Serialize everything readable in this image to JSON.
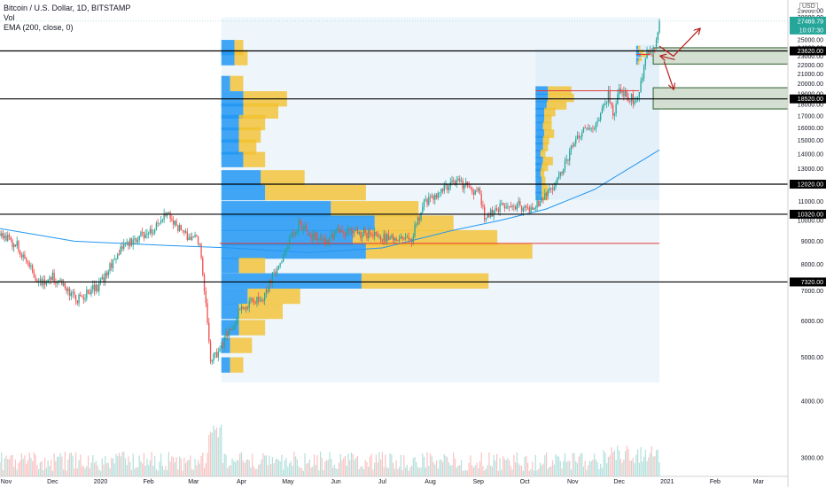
{
  "legend": {
    "symbol": "Bitcoin / U.S. Dollar, 1D, BITSTAMP",
    "volume": "Vol",
    "ema": "EMA (200, close, 0)"
  },
  "currency": "USD",
  "chart_data": {
    "type": "candlestick",
    "y_axis": {
      "scale": "log",
      "range": [
        2600,
        29500
      ],
      "tick_labels": [
        "29000.00",
        "28000.00",
        "27000.00",
        "26000.00",
        "25000.00",
        "24000.00",
        "23000.00",
        "22000.00",
        "21000.00",
        "20000.00",
        "19000.00",
        "18000.00",
        "17000.00",
        "16000.00",
        "15000.00",
        "14000.00",
        "13000.00",
        "12000.00",
        "11000.00",
        "10000.00",
        "9000.00",
        "8000.00",
        "7000.00",
        "6000.00",
        "5000.00",
        "4000.00",
        "3000.00"
      ]
    },
    "x_axis": {
      "range": [
        "2019-10-28",
        "2021-03-20"
      ],
      "tick_labels": [
        {
          "label": "Nov",
          "date": "2019-11-01"
        },
        {
          "label": "Dec",
          "date": "2019-12-01"
        },
        {
          "label": "2020",
          "date": "2020-01-01"
        },
        {
          "label": "Feb",
          "date": "2020-02-01"
        },
        {
          "label": "Mar",
          "date": "2020-03-01"
        },
        {
          "label": "Apr",
          "date": "2020-04-01"
        },
        {
          "label": "May",
          "date": "2020-05-01"
        },
        {
          "label": "Jun",
          "date": "2020-06-01"
        },
        {
          "label": "Jul",
          "date": "2020-07-01"
        },
        {
          "label": "Aug",
          "date": "2020-08-01"
        },
        {
          "label": "Sep",
          "date": "2020-09-01"
        },
        {
          "label": "Oct",
          "date": "2020-10-01"
        },
        {
          "label": "Nov",
          "date": "2020-11-01"
        },
        {
          "label": "Dec",
          "date": "2020-12-01"
        },
        {
          "label": "2021",
          "date": "2021-01-01"
        },
        {
          "label": "Feb",
          "date": "2021-02-01"
        },
        {
          "label": "Mar",
          "date": "2021-03-01"
        }
      ]
    },
    "price_path": [
      [
        "2019-10-28",
        9350
      ],
      [
        "2019-11-08",
        8800
      ],
      [
        "2019-11-22",
        7300
      ],
      [
        "2019-12-01",
        7500
      ],
      [
        "2019-12-17",
        6700
      ],
      [
        "2019-12-31",
        7200
      ],
      [
        "2020-01-15",
        8800
      ],
      [
        "2020-02-01",
        9400
      ],
      [
        "2020-02-13",
        10300
      ],
      [
        "2020-02-25",
        9300
      ],
      [
        "2020-03-05",
        9000
      ],
      [
        "2020-03-12",
        5000
      ],
      [
        "2020-03-16",
        5100
      ],
      [
        "2020-04-01",
        6400
      ],
      [
        "2020-04-15",
        6800
      ],
      [
        "2020-04-30",
        8700
      ],
      [
        "2020-05-08",
        9800
      ],
      [
        "2020-05-25",
        8900
      ],
      [
        "2020-06-01",
        9500
      ],
      [
        "2020-06-15",
        9400
      ],
      [
        "2020-07-01",
        9200
      ],
      [
        "2020-07-20",
        9150
      ],
      [
        "2020-07-28",
        11000
      ],
      [
        "2020-08-10",
        11700
      ],
      [
        "2020-08-17",
        12200
      ],
      [
        "2020-09-02",
        11500
      ],
      [
        "2020-09-05",
        10200
      ],
      [
        "2020-09-20",
        10900
      ],
      [
        "2020-10-07",
        10600
      ],
      [
        "2020-10-20",
        11900
      ],
      [
        "2020-10-27",
        13400
      ],
      [
        "2020-11-05",
        15500
      ],
      [
        "2020-11-15",
        16000
      ],
      [
        "2020-11-24",
        19000
      ],
      [
        "2020-11-27",
        17000
      ],
      [
        "2020-12-01",
        19300
      ],
      [
        "2020-12-12",
        18300
      ],
      [
        "2020-12-16",
        21000
      ],
      [
        "2020-12-19",
        23600
      ],
      [
        "2020-12-22",
        23000
      ],
      [
        "2020-12-26",
        25500
      ],
      [
        "2020-12-27",
        27469.79
      ]
    ],
    "ema_200": [
      [
        "2019-10-28",
        9600
      ],
      [
        "2019-12-15",
        9000
      ],
      [
        "2020-02-15",
        8800
      ],
      [
        "2020-03-25",
        8700
      ],
      [
        "2020-05-15",
        8500
      ],
      [
        "2020-07-01",
        8700
      ],
      [
        "2020-08-15",
        9500
      ],
      [
        "2020-09-15",
        10000
      ],
      [
        "2020-10-15",
        10600
      ],
      [
        "2020-11-15",
        11700
      ],
      [
        "2020-12-27",
        14300
      ]
    ],
    "horizontal_levels": [
      {
        "price": 23620,
        "label": "23620.00"
      },
      {
        "price": 18520,
        "label": "18520.00"
      },
      {
        "price": 12020,
        "label": "12020.00"
      },
      {
        "price": 10320,
        "label": "10320.00"
      },
      {
        "price": 7320,
        "label": "7320.00"
      }
    ],
    "point_of_control_lines": [
      {
        "from": "2020-03-18",
        "to": "2020-12-27",
        "price": 8900
      },
      {
        "from": "2020-10-08",
        "to": "2020-12-14",
        "price": 19300
      },
      {
        "from": "2020-12-12",
        "to": "2020-12-21",
        "price": 23200
      }
    ],
    "current_price": {
      "price": 27469.79,
      "label": "27469.79",
      "countdown": "10:07:30"
    },
    "zones": [
      {
        "from": "2020-12-23",
        "to": "2021-03-20",
        "low": 22100,
        "high": 24000
      },
      {
        "from": "2020-12-23",
        "to": "2021-03-20",
        "low": 17600,
        "high": 19600
      }
    ],
    "projection_arrows": [
      {
        "points": [
          [
            "2020-12-27",
            24200
          ],
          [
            "2021-01-05",
            23000
          ],
          [
            "2021-01-22",
            26400
          ]
        ]
      },
      {
        "points": [
          [
            "2020-12-30",
            22400
          ],
          [
            "2021-01-05",
            19500
          ]
        ]
      },
      {
        "points": [
          [
            "2021-01-06",
            22600
          ],
          [
            "2020-12-28",
            23000
          ]
        ]
      }
    ],
    "volume_profiles": [
      {
        "from": "2020-03-19",
        "to": "2020-12-27",
        "low": 4400,
        "high": 28000,
        "rows": [
          {
            "price": 24000,
            "up": 0.03,
            "down": 0.02
          },
          {
            "price": 22800,
            "up": 0.03,
            "down": 0.03
          },
          {
            "price": 20000,
            "up": 0.02,
            "down": 0.03
          },
          {
            "price": 18500,
            "up": 0.05,
            "down": 0.1
          },
          {
            "price": 17400,
            "up": 0.05,
            "down": 0.08
          },
          {
            "price": 16400,
            "up": 0.04,
            "down": 0.06
          },
          {
            "price": 15400,
            "up": 0.04,
            "down": 0.05
          },
          {
            "price": 14500,
            "up": 0.04,
            "down": 0.04
          },
          {
            "price": 13600,
            "up": 0.05,
            "down": 0.05
          },
          {
            "price": 12400,
            "up": 0.09,
            "down": 0.1
          },
          {
            "price": 11500,
            "up": 0.1,
            "down": 0.23
          },
          {
            "price": 10600,
            "up": 0.25,
            "down": 0.2
          },
          {
            "price": 9850,
            "up": 0.35,
            "down": 0.18
          },
          {
            "price": 9150,
            "up": 0.3,
            "down": 0.33
          },
          {
            "price": 8550,
            "up": 0.33,
            "down": 0.38
          },
          {
            "price": 7950,
            "up": 0.04,
            "down": 0.06
          },
          {
            "price": 7350,
            "up": 0.32,
            "down": 0.29
          },
          {
            "price": 6800,
            "up": 0.06,
            "down": 0.12
          },
          {
            "price": 6300,
            "up": 0.04,
            "down": 0.1
          },
          {
            "price": 5800,
            "up": 0.04,
            "down": 0.06
          },
          {
            "price": 5300,
            "up": 0.02,
            "down": 0.05
          },
          {
            "price": 4800,
            "up": 0.02,
            "down": 0.03
          }
        ]
      },
      {
        "from": "2020-10-08",
        "to": "2020-12-27",
        "low": 11100,
        "high": 23900,
        "rows": [
          {
            "price": 19300,
            "up": 0.1,
            "down": 0.19
          },
          {
            "price": 18600,
            "up": 0.1,
            "down": 0.21
          },
          {
            "price": 17900,
            "up": 0.09,
            "down": 0.16
          },
          {
            "price": 17300,
            "up": 0.07,
            "down": 0.09
          },
          {
            "price": 16700,
            "up": 0.07,
            "down": 0.06
          },
          {
            "price": 16100,
            "up": 0.06,
            "down": 0.07
          },
          {
            "price": 15500,
            "up": 0.07,
            "down": 0.08
          },
          {
            "price": 15000,
            "up": 0.06,
            "down": 0.05
          },
          {
            "price": 14500,
            "up": 0.06,
            "down": 0.04
          },
          {
            "price": 14000,
            "up": 0.04,
            "down": 0.04
          },
          {
            "price": 13500,
            "up": 0.06,
            "down": 0.08
          },
          {
            "price": 13100,
            "up": 0.05,
            "down": 0.05
          },
          {
            "price": 12700,
            "up": 0.04,
            "down": 0.03
          },
          {
            "price": 12200,
            "up": 0.05,
            "down": 0.03
          },
          {
            "price": 11700,
            "up": 0.05,
            "down": 0.05
          },
          {
            "price": 11300,
            "up": 0.05,
            "down": 0.05
          }
        ]
      },
      {
        "from": "2020-12-12",
        "to": "2020-12-27",
        "low": 21900,
        "high": 24400,
        "rows": [
          {
            "price": 24000,
            "up": 0.08,
            "down": 0.1
          },
          {
            "price": 23500,
            "up": 0.12,
            "down": 0.2
          },
          {
            "price": 23100,
            "up": 0.2,
            "down": 0.3
          },
          {
            "price": 22600,
            "up": 0.1,
            "down": 0.14
          },
          {
            "price": 22200,
            "up": 0.06,
            "down": 0.08
          }
        ]
      }
    ],
    "colors": {
      "up": "#26a69a",
      "down": "#ef5350",
      "ema": "#2196f3",
      "level_line": "#000000",
      "poc_line": "#e53935",
      "profile_up": "#2196f3",
      "profile_down": "#f2c12e",
      "zone_fill": "#d3dfd0",
      "zone_border": "#2e5e2e",
      "arrow": "#b71c1c",
      "price_label_bg": "#26a69a",
      "level_label_bg": "#000000"
    }
  }
}
